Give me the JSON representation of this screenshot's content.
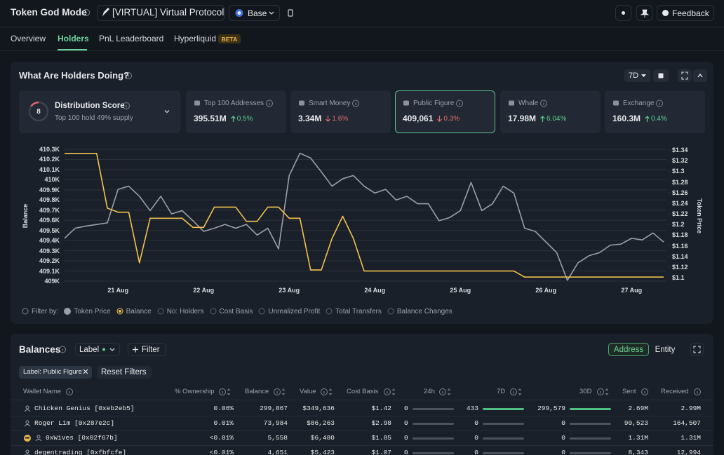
{
  "header": {
    "title": "Token God Mode",
    "token": "[VIRTUAL] Virtual Protocol",
    "chain": "Base",
    "feedback": "Feedback"
  },
  "tabs": {
    "items": [
      "Overview",
      "Holders",
      "PnL Leaderboard",
      "Hyperliquid"
    ],
    "active": 1,
    "beta": "BETA"
  },
  "holders": {
    "title": "What Are Holders Doing?",
    "period": "7D",
    "distribution": {
      "score": "8",
      "title": "Distribution Score",
      "subtitle": "Top 100 hold 49% supply"
    },
    "stats": [
      {
        "label": "Top 100 Addresses",
        "value": "395.51M",
        "change": "0.5%",
        "direction": "up"
      },
      {
        "label": "Smart Money",
        "value": "3.34M",
        "change": "1.6%",
        "direction": "down"
      },
      {
        "label": "Public Figure",
        "value": "409,061",
        "change": "0.3%",
        "direction": "down",
        "selected": true
      },
      {
        "label": "Whale",
        "value": "17.98M",
        "change": "6.04%",
        "direction": "up"
      },
      {
        "label": "Exchange",
        "value": "160.3M",
        "change": "0.4%",
        "direction": "up"
      }
    ]
  },
  "chart_data": {
    "type": "line",
    "y_label": "Balance",
    "y2_label": "Token Price",
    "categories": [
      null,
      null,
      null,
      null,
      null,
      "21 Aug",
      null,
      null,
      null,
      null,
      null,
      null,
      null,
      "22 Aug",
      null,
      null,
      null,
      null,
      null,
      null,
      null,
      "23 Aug",
      null,
      null,
      null,
      null,
      null,
      null,
      null,
      "24 Aug",
      null,
      null,
      null,
      null,
      null,
      null,
      null,
      "25 Aug",
      null,
      null,
      null,
      null,
      null,
      null,
      null,
      "26 Aug",
      null,
      null,
      null,
      null,
      null,
      null,
      null,
      "27 Aug",
      null,
      null,
      null
    ],
    "series": [
      {
        "name": "Token Price",
        "color": "#9aa0a6",
        "axis": "y2",
        "values": [
          1.174,
          1.193,
          1.197,
          1.2,
          1.203,
          1.266,
          1.272,
          1.253,
          1.226,
          1.253,
          1.22,
          1.226,
          1.207,
          1.187,
          1.193,
          1.2,
          1.193,
          1.2,
          1.18,
          1.193,
          1.154,
          1.292,
          1.334,
          1.325,
          1.299,
          1.272,
          1.286,
          1.292,
          1.272,
          1.259,
          1.266,
          1.246,
          1.253,
          1.239,
          1.239,
          1.207,
          1.213,
          1.226,
          1.279,
          1.226,
          1.239,
          1.272,
          1.259,
          1.193,
          1.187,
          1.167,
          1.147,
          1.095,
          1.128,
          1.141,
          1.147,
          1.161,
          1.163,
          1.174,
          1.171,
          1.184,
          1.167
        ]
      },
      {
        "name": "Balance",
        "color": "#f2c14e",
        "values": [
          410260,
          410260,
          410260,
          410260,
          409720,
          409680,
          409680,
          409180,
          409620,
          409620,
          409620,
          409620,
          409530,
          409530,
          409730,
          409730,
          409730,
          409590,
          409590,
          409730,
          409730,
          409620,
          409620,
          409110,
          409110,
          409420,
          409640,
          409420,
          409100,
          409100,
          409100,
          409100,
          409100,
          409100,
          409100,
          409100,
          409100,
          409100,
          409100,
          409100,
          409100,
          409100,
          409100,
          409040,
          409040,
          409040,
          409040,
          409040,
          409040,
          409040,
          409040,
          409040,
          409040,
          409040,
          409040,
          409040,
          409040
        ]
      }
    ],
    "ylim": [
      409000,
      410300
    ],
    "yticks": [
      {
        "value": 409000,
        "label": "409K"
      },
      {
        "value": 409100,
        "label": "409.1K"
      },
      {
        "value": 409200,
        "label": "409.2K"
      },
      {
        "value": 409300,
        "label": "409.3K"
      },
      {
        "value": 409400,
        "label": "409.4K"
      },
      {
        "value": 409500,
        "label": "409.5K"
      },
      {
        "value": 409600,
        "label": "409.6K"
      },
      {
        "value": 409700,
        "label": "409.7K"
      },
      {
        "value": 409800,
        "label": "409.8K"
      },
      {
        "value": 409900,
        "label": "409.9K"
      },
      {
        "value": 410000,
        "label": "410K"
      },
      {
        "value": 410100,
        "label": "410.1K"
      },
      {
        "value": 410200,
        "label": "410.2K"
      },
      {
        "value": 410300,
        "label": "410.3K"
      }
    ],
    "y2lim": [
      1.1,
      1.34
    ],
    "y2ticks": [
      {
        "value": 1.1,
        "label": "$1.1"
      },
      {
        "value": 1.12,
        "label": "$1.12"
      },
      {
        "value": 1.14,
        "label": "$1.14"
      },
      {
        "value": 1.16,
        "label": "$1.16"
      },
      {
        "value": 1.18,
        "label": "$1.18"
      },
      {
        "value": 1.2,
        "label": "$1.2"
      },
      {
        "value": 1.22,
        "label": "$1.22"
      },
      {
        "value": 1.24,
        "label": "$1.24"
      },
      {
        "value": 1.26,
        "label": "$1.26"
      },
      {
        "value": 1.28,
        "label": "$1.28"
      },
      {
        "value": 1.3,
        "label": "$1.3"
      },
      {
        "value": 1.32,
        "label": "$1.32"
      },
      {
        "value": 1.34,
        "label": "$1.34"
      }
    ],
    "grid": true,
    "filter_label": "Filter by:",
    "filter_options": [
      "No: Holders",
      "Cost Basis",
      "Unrealized Profit",
      "Total Transfers",
      "Balance Changes"
    ]
  },
  "balances": {
    "title": "Balances",
    "label_dropdown": "Label",
    "filter_button": "Filter",
    "toggle": [
      "Address",
      "Entity"
    ],
    "chip": "Label: Public Figure",
    "reset": "Reset Filters",
    "columns": [
      "Wallet Name",
      "% Ownership",
      "Balance",
      "Value",
      "Cost Basis",
      "24h",
      "7D",
      "30D",
      "Sent",
      "Received"
    ],
    "rows": [
      [
        "Chicken Genius [0xeb2eb5]",
        "0.06%",
        "299,867",
        "$349,636",
        "$1.42",
        "0",
        "433",
        "299,579",
        "2.69M",
        "2.99M"
      ],
      [
        "Roger Lim [0x287e2c]",
        "0.01%",
        "73,984",
        "$86,263",
        "$2.98",
        "0",
        "0",
        "0",
        "90,523",
        "164,507"
      ],
      [
        "0xWives [0x02f67b]",
        "<0.01%",
        "5,558",
        "$6,480",
        "$1.85",
        "0",
        "0",
        "0",
        "1.31M",
        "1.31M"
      ],
      [
        "degentrading [0xfbfcfe]",
        "<0.01%",
        "4,651",
        "$5,423",
        "$1.07",
        "0",
        "0",
        "0",
        "8,343",
        "12,994"
      ]
    ]
  }
}
